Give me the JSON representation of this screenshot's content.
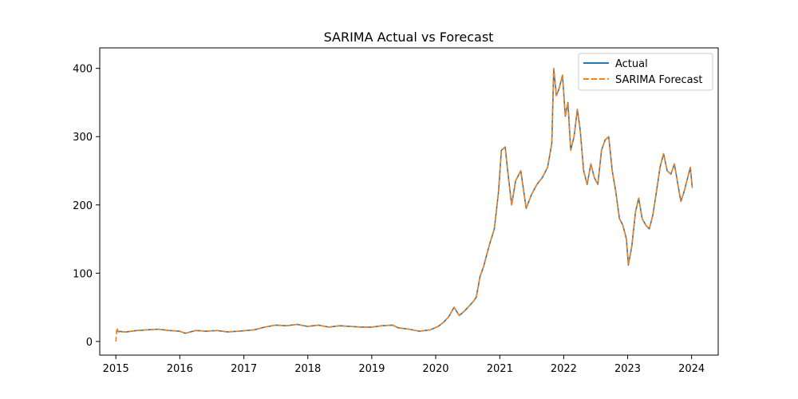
{
  "chart_data": {
    "type": "line",
    "title": "SARIMA Actual vs Forecast",
    "xlabel": "",
    "ylabel": "",
    "x_ticks": [
      "2015",
      "2016",
      "2017",
      "2018",
      "2019",
      "2020",
      "2021",
      "2022",
      "2023",
      "2024"
    ],
    "y_ticks": [
      "0",
      "100",
      "200",
      "300",
      "400"
    ],
    "xlim": [
      "2014-10-01",
      "2024-06-01"
    ],
    "ylim": [
      -20,
      430
    ],
    "grid": false,
    "legend_position": "top-right",
    "colors": {
      "actual": "#1f77b4",
      "forecast": "#ff7f0e"
    },
    "series": [
      {
        "name": "Actual",
        "style": "solid",
        "x": [
          "2015-01-01",
          "2015-03-01",
          "2015-05-01",
          "2015-07-01",
          "2015-09-01",
          "2015-11-01",
          "2016-01-01",
          "2016-02-01",
          "2016-04-01",
          "2016-06-01",
          "2016-08-01",
          "2016-10-01",
          "2016-12-01",
          "2017-03-01",
          "2017-05-01",
          "2017-07-01",
          "2017-09-01",
          "2017-11-01",
          "2018-01-01",
          "2018-03-01",
          "2018-05-01",
          "2018-07-01",
          "2018-09-01",
          "2018-11-01",
          "2019-01-01",
          "2019-03-01",
          "2019-05-01",
          "2019-06-01",
          "2019-08-01",
          "2019-10-01",
          "2019-12-01",
          "2020-01-15",
          "2020-02-15",
          "2020-03-15",
          "2020-04-15",
          "2020-05-15",
          "2020-06-15",
          "2020-07-10",
          "2020-08-01",
          "2020-08-20",
          "2020-09-10",
          "2020-10-01",
          "2020-11-01",
          "2020-12-01",
          "2020-12-25",
          "2021-01-10",
          "2021-02-01",
          "2021-02-15",
          "2021-03-10",
          "2021-04-01",
          "2021-05-01",
          "2021-06-01",
          "2021-07-01",
          "2021-08-01",
          "2021-09-01",
          "2021-10-01",
          "2021-10-25",
          "2021-11-05",
          "2021-11-20",
          "2021-12-05",
          "2021-12-25",
          "2022-01-10",
          "2022-01-25",
          "2022-02-10",
          "2022-03-01",
          "2022-03-20",
          "2022-04-05",
          "2022-04-25",
          "2022-05-15",
          "2022-06-05",
          "2022-06-25",
          "2022-07-15",
          "2022-08-05",
          "2022-08-25",
          "2022-09-15",
          "2022-10-05",
          "2022-10-25",
          "2022-11-15",
          "2022-12-05",
          "2022-12-25",
          "2023-01-05",
          "2023-01-25",
          "2023-02-15",
          "2023-03-05",
          "2023-03-25",
          "2023-04-15",
          "2023-05-05",
          "2023-05-25",
          "2023-06-15",
          "2023-07-05",
          "2023-07-25",
          "2023-08-15",
          "2023-09-05",
          "2023-09-25",
          "2023-10-15",
          "2023-11-01",
          "2023-11-20",
          "2023-12-10",
          "2023-12-25",
          "2024-01-05"
        ],
        "y": [
          15,
          14,
          16,
          17,
          18,
          16,
          15,
          12,
          16,
          15,
          16,
          14,
          15,
          17,
          21,
          24,
          23,
          25,
          22,
          24,
          21,
          23,
          22,
          21,
          21,
          23,
          24,
          20,
          18,
          15,
          17,
          22,
          28,
          36,
          50,
          38,
          45,
          52,
          58,
          65,
          95,
          110,
          140,
          165,
          220,
          280,
          285,
          250,
          200,
          235,
          250,
          195,
          215,
          230,
          240,
          255,
          290,
          400,
          360,
          370,
          390,
          330,
          350,
          280,
          300,
          340,
          310,
          250,
          230,
          260,
          240,
          230,
          280,
          295,
          300,
          250,
          220,
          180,
          170,
          150,
          112,
          140,
          190,
          210,
          180,
          170,
          165,
          185,
          220,
          255,
          275,
          250,
          245,
          260,
          230,
          205,
          220,
          240,
          255,
          225
        ]
      },
      {
        "name": "SARIMA Forecast",
        "style": "dashed",
        "x": [
          "2015-01-01",
          "2015-01-08",
          "2015-01-15",
          "2015-03-01",
          "2015-05-01",
          "2015-07-01",
          "2015-09-01",
          "2015-11-01",
          "2016-01-01",
          "2016-02-01",
          "2016-04-01",
          "2016-06-01",
          "2016-08-01",
          "2016-10-01",
          "2016-12-01",
          "2017-03-01",
          "2017-05-01",
          "2017-07-01",
          "2017-09-01",
          "2017-11-01",
          "2018-01-01",
          "2018-03-01",
          "2018-05-01",
          "2018-07-01",
          "2018-09-01",
          "2018-11-01",
          "2019-01-01",
          "2019-03-01",
          "2019-05-01",
          "2019-06-01",
          "2019-08-01",
          "2019-10-01",
          "2019-12-01",
          "2020-01-15",
          "2020-02-15",
          "2020-03-15",
          "2020-04-15",
          "2020-05-15",
          "2020-06-15",
          "2020-07-10",
          "2020-08-01",
          "2020-08-20",
          "2020-09-10",
          "2020-10-01",
          "2020-11-01",
          "2020-12-01",
          "2020-12-25",
          "2021-01-10",
          "2021-02-01",
          "2021-02-15",
          "2021-03-10",
          "2021-04-01",
          "2021-05-01",
          "2021-06-01",
          "2021-07-01",
          "2021-08-01",
          "2021-09-01",
          "2021-10-01",
          "2021-10-25",
          "2021-11-05",
          "2021-11-20",
          "2021-12-05",
          "2021-12-25",
          "2022-01-10",
          "2022-01-25",
          "2022-02-10",
          "2022-03-01",
          "2022-03-20",
          "2022-04-05",
          "2022-04-25",
          "2022-05-15",
          "2022-06-05",
          "2022-06-25",
          "2022-07-15",
          "2022-08-05",
          "2022-08-25",
          "2022-09-15",
          "2022-10-05",
          "2022-10-25",
          "2022-11-15",
          "2022-12-05",
          "2022-12-25",
          "2023-01-05",
          "2023-01-25",
          "2023-02-15",
          "2023-03-05",
          "2023-03-25",
          "2023-04-15",
          "2023-05-05",
          "2023-05-25",
          "2023-06-15",
          "2023-07-05",
          "2023-07-25",
          "2023-08-15",
          "2023-09-05",
          "2023-09-25",
          "2023-10-15",
          "2023-11-01",
          "2023-11-20",
          "2023-12-10",
          "2023-12-25",
          "2024-01-05"
        ],
        "y": [
          0,
          20,
          14,
          14,
          16,
          17,
          18,
          16,
          15,
          12,
          16,
          15,
          16,
          14,
          15,
          17,
          21,
          24,
          23,
          25,
          22,
          24,
          21,
          23,
          22,
          21,
          21,
          23,
          24,
          20,
          18,
          15,
          17,
          22,
          28,
          36,
          50,
          38,
          45,
          52,
          58,
          65,
          95,
          110,
          140,
          165,
          220,
          280,
          285,
          250,
          200,
          235,
          250,
          195,
          215,
          230,
          240,
          255,
          290,
          400,
          360,
          370,
          390,
          330,
          350,
          280,
          300,
          340,
          310,
          250,
          230,
          260,
          240,
          230,
          280,
          295,
          300,
          250,
          220,
          180,
          170,
          150,
          112,
          140,
          190,
          210,
          180,
          170,
          165,
          185,
          220,
          255,
          275,
          250,
          245,
          260,
          230,
          205,
          220,
          240,
          255,
          225
        ]
      }
    ]
  }
}
